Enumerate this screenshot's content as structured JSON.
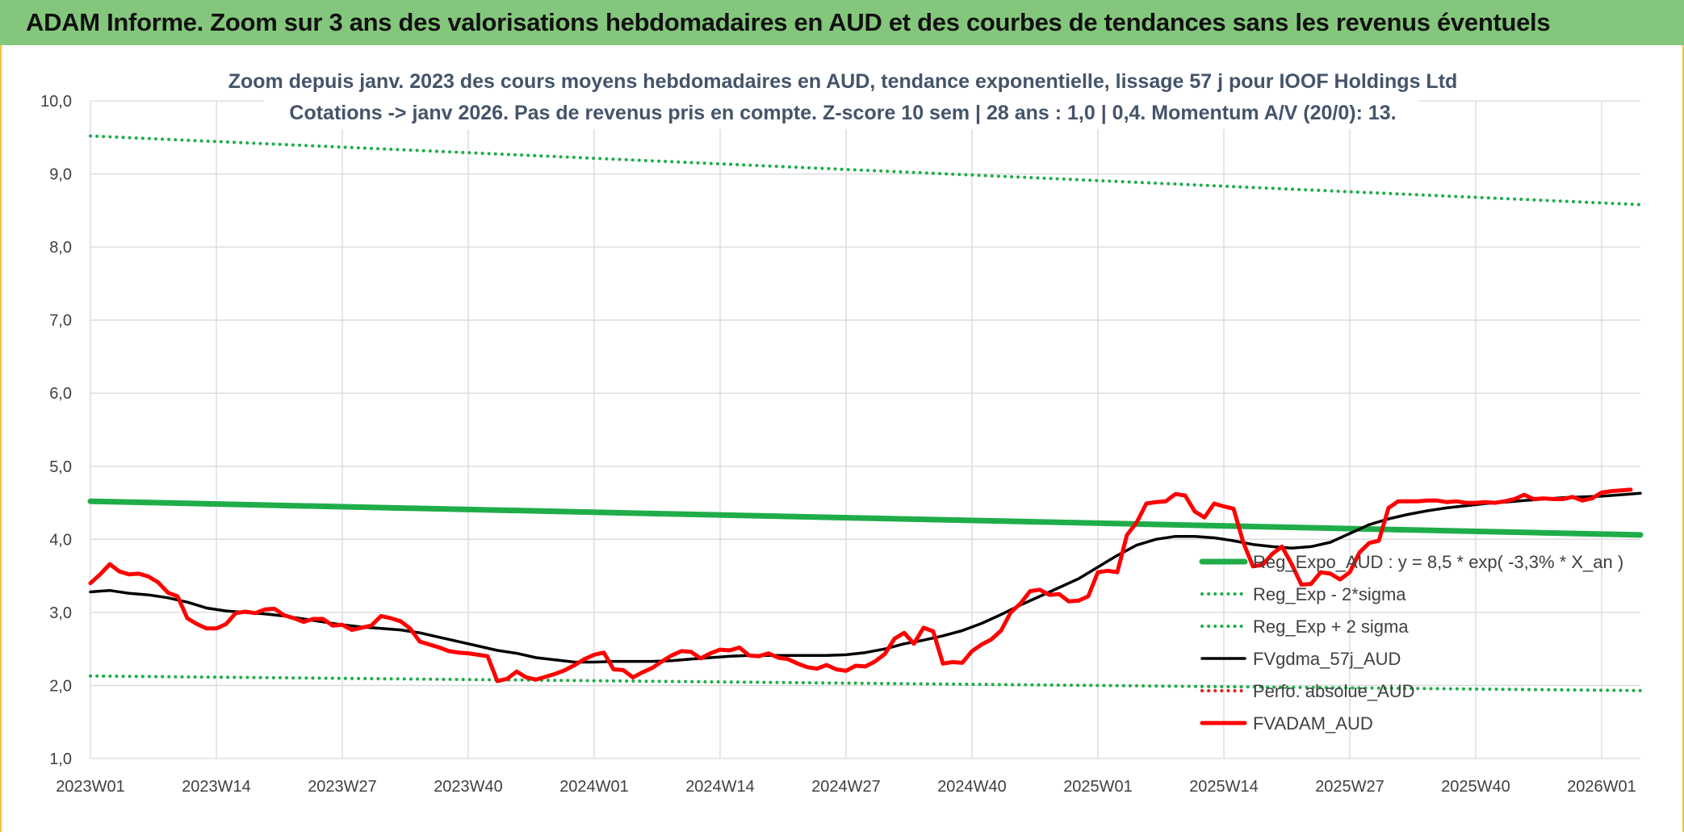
{
  "header": {
    "title": "ADAM Informe. Zoom sur 3 ans des valorisations hebdomadaires en AUD et des courbes de tendances sans les revenus éventuels"
  },
  "chart_data": {
    "type": "line",
    "title_line1": "Zoom depuis janv. 2023 des cours moyens hebdomadaires en AUD, tendance exponentielle, lissage 57 j pour IOOF Holdings Ltd",
    "title_line2": "Cotations -> janv 2026. Pas de revenus pris en compte. Z-score 10 sem | 28 ans : 1,0 | 0,4. Momentum A/V (20/0): 13.",
    "ylim": [
      1.0,
      10.0
    ],
    "y_ticks": [
      "1,0",
      "2,0",
      "3,0",
      "4,0",
      "5,0",
      "6,0",
      "7,0",
      "8,0",
      "9,0",
      "10,0"
    ],
    "x_range_weeks": [
      0,
      160
    ],
    "x_ticks": [
      {
        "label": "2023W01",
        "week": 0
      },
      {
        "label": "2023W14",
        "week": 13
      },
      {
        "label": "2023W27",
        "week": 26
      },
      {
        "label": "2023W40",
        "week": 39
      },
      {
        "label": "2024W01",
        "week": 52
      },
      {
        "label": "2024W14",
        "week": 65
      },
      {
        "label": "2024W27",
        "week": 78
      },
      {
        "label": "2024W40",
        "week": 91
      },
      {
        "label": "2025W01",
        "week": 104
      },
      {
        "label": "2025W14",
        "week": 117
      },
      {
        "label": "2025W27",
        "week": 130
      },
      {
        "label": "2025W40",
        "week": 143
      },
      {
        "label": "2026W01",
        "week": 156
      }
    ],
    "grid": true,
    "legend_position": "right",
    "series": [
      {
        "name": "Reg_Expo_AUD : y = 8,5 * exp( -3,3% *  X_an )",
        "color": "#1fad4a",
        "style": "solid-thick",
        "points": [
          [
            0,
            4.52
          ],
          [
            160,
            4.06
          ]
        ]
      },
      {
        "name": "Reg_Exp - 2*sigma",
        "color": "#1fad4a",
        "style": "dotted",
        "points": [
          [
            0,
            2.13
          ],
          [
            160,
            1.93
          ]
        ]
      },
      {
        "name": "Reg_Exp + 2 sigma",
        "color": "#1fad4a",
        "style": "dotted",
        "points": [
          [
            0,
            9.52
          ],
          [
            160,
            8.58
          ]
        ]
      },
      {
        "name": "FVgdma_57j_AUD",
        "color": "#000000",
        "style": "solid",
        "points": [
          [
            0,
            3.28
          ],
          [
            2,
            3.3
          ],
          [
            4,
            3.26
          ],
          [
            6,
            3.24
          ],
          [
            8,
            3.2
          ],
          [
            10,
            3.14
          ],
          [
            12,
            3.06
          ],
          [
            14,
            3.02
          ],
          [
            16,
            3.0
          ],
          [
            18,
            2.98
          ],
          [
            20,
            2.95
          ],
          [
            22,
            2.91
          ],
          [
            24,
            2.87
          ],
          [
            26,
            2.83
          ],
          [
            28,
            2.8
          ],
          [
            30,
            2.78
          ],
          [
            32,
            2.76
          ],
          [
            34,
            2.72
          ],
          [
            36,
            2.66
          ],
          [
            38,
            2.6
          ],
          [
            40,
            2.54
          ],
          [
            42,
            2.48
          ],
          [
            44,
            2.44
          ],
          [
            46,
            2.38
          ],
          [
            48,
            2.35
          ],
          [
            50,
            2.32
          ],
          [
            52,
            2.32
          ],
          [
            54,
            2.33
          ],
          [
            56,
            2.33
          ],
          [
            58,
            2.33
          ],
          [
            60,
            2.34
          ],
          [
            62,
            2.36
          ],
          [
            64,
            2.38
          ],
          [
            66,
            2.4
          ],
          [
            68,
            2.41
          ],
          [
            70,
            2.41
          ],
          [
            72,
            2.41
          ],
          [
            74,
            2.41
          ],
          [
            76,
            2.41
          ],
          [
            78,
            2.42
          ],
          [
            80,
            2.45
          ],
          [
            82,
            2.5
          ],
          [
            84,
            2.57
          ],
          [
            86,
            2.62
          ],
          [
            88,
            2.68
          ],
          [
            90,
            2.75
          ],
          [
            92,
            2.85
          ],
          [
            94,
            2.97
          ],
          [
            96,
            3.1
          ],
          [
            98,
            3.22
          ],
          [
            100,
            3.34
          ],
          [
            102,
            3.46
          ],
          [
            104,
            3.62
          ],
          [
            106,
            3.78
          ],
          [
            108,
            3.92
          ],
          [
            110,
            4.0
          ],
          [
            112,
            4.04
          ],
          [
            114,
            4.04
          ],
          [
            116,
            4.02
          ],
          [
            118,
            3.98
          ],
          [
            120,
            3.93
          ],
          [
            122,
            3.9
          ],
          [
            124,
            3.88
          ],
          [
            126,
            3.9
          ],
          [
            128,
            3.96
          ],
          [
            130,
            4.08
          ],
          [
            132,
            4.2
          ],
          [
            134,
            4.28
          ],
          [
            136,
            4.34
          ],
          [
            138,
            4.39
          ],
          [
            140,
            4.43
          ],
          [
            142,
            4.46
          ],
          [
            144,
            4.49
          ],
          [
            146,
            4.51
          ],
          [
            148,
            4.53
          ],
          [
            150,
            4.55
          ],
          [
            152,
            4.57
          ],
          [
            154,
            4.58
          ],
          [
            156,
            4.59
          ],
          [
            158,
            4.61
          ],
          [
            160,
            4.63
          ]
        ]
      },
      {
        "name": "Perfo. absolue_AUD",
        "color": "#e02020",
        "style": "dotted",
        "points": []
      },
      {
        "name": "FVADAM_AUD",
        "color": "#ff0000",
        "style": "solid-thick",
        "points": [
          [
            0,
            3.4
          ],
          [
            1,
            3.52
          ],
          [
            2,
            3.66
          ],
          [
            3,
            3.56
          ],
          [
            4,
            3.52
          ],
          [
            5,
            3.53
          ],
          [
            6,
            3.49
          ],
          [
            7,
            3.41
          ],
          [
            8,
            3.27
          ],
          [
            9,
            3.22
          ],
          [
            10,
            2.92
          ],
          [
            11,
            2.84
          ],
          [
            12,
            2.78
          ],
          [
            13,
            2.78
          ],
          [
            14,
            2.84
          ],
          [
            15,
            2.99
          ],
          [
            16,
            3.01
          ],
          [
            17,
            2.99
          ],
          [
            18,
            3.04
          ],
          [
            19,
            3.05
          ],
          [
            20,
            2.96
          ],
          [
            21,
            2.92
          ],
          [
            22,
            2.87
          ],
          [
            23,
            2.91
          ],
          [
            24,
            2.91
          ],
          [
            25,
            2.82
          ],
          [
            26,
            2.83
          ],
          [
            27,
            2.76
          ],
          [
            28,
            2.79
          ],
          [
            29,
            2.82
          ],
          [
            30,
            2.95
          ],
          [
            31,
            2.92
          ],
          [
            32,
            2.88
          ],
          [
            33,
            2.78
          ],
          [
            34,
            2.6
          ],
          [
            35,
            2.56
          ],
          [
            36,
            2.52
          ],
          [
            37,
            2.47
          ],
          [
            38,
            2.45
          ],
          [
            39,
            2.44
          ],
          [
            40,
            2.42
          ],
          [
            41,
            2.4
          ],
          [
            42,
            2.06
          ],
          [
            43,
            2.09
          ],
          [
            44,
            2.19
          ],
          [
            45,
            2.11
          ],
          [
            46,
            2.08
          ],
          [
            47,
            2.12
          ],
          [
            48,
            2.16
          ],
          [
            49,
            2.21
          ],
          [
            50,
            2.28
          ],
          [
            51,
            2.36
          ],
          [
            52,
            2.42
          ],
          [
            53,
            2.45
          ],
          [
            54,
            2.22
          ],
          [
            55,
            2.21
          ],
          [
            56,
            2.11
          ],
          [
            57,
            2.18
          ],
          [
            58,
            2.24
          ],
          [
            59,
            2.33
          ],
          [
            60,
            2.41
          ],
          [
            61,
            2.47
          ],
          [
            62,
            2.46
          ],
          [
            63,
            2.37
          ],
          [
            64,
            2.44
          ],
          [
            65,
            2.49
          ],
          [
            66,
            2.48
          ],
          [
            67,
            2.52
          ],
          [
            68,
            2.41
          ],
          [
            69,
            2.4
          ],
          [
            70,
            2.44
          ],
          [
            71,
            2.38
          ],
          [
            72,
            2.36
          ],
          [
            73,
            2.3
          ],
          [
            74,
            2.25
          ],
          [
            75,
            2.23
          ],
          [
            76,
            2.28
          ],
          [
            77,
            2.22
          ],
          [
            78,
            2.2
          ],
          [
            79,
            2.27
          ],
          [
            80,
            2.26
          ],
          [
            81,
            2.33
          ],
          [
            82,
            2.43
          ],
          [
            83,
            2.64
          ],
          [
            84,
            2.72
          ],
          [
            85,
            2.57
          ],
          [
            86,
            2.79
          ],
          [
            87,
            2.74
          ],
          [
            88,
            2.3
          ],
          [
            89,
            2.32
          ],
          [
            90,
            2.31
          ],
          [
            91,
            2.47
          ],
          [
            92,
            2.56
          ],
          [
            93,
            2.63
          ],
          [
            94,
            2.75
          ],
          [
            95,
            3.0
          ],
          [
            96,
            3.12
          ],
          [
            97,
            3.29
          ],
          [
            98,
            3.31
          ],
          [
            99,
            3.24
          ],
          [
            100,
            3.25
          ],
          [
            101,
            3.15
          ],
          [
            102,
            3.16
          ],
          [
            103,
            3.22
          ],
          [
            104,
            3.55
          ],
          [
            105,
            3.57
          ],
          [
            106,
            3.55
          ],
          [
            107,
            4.06
          ],
          [
            108,
            4.23
          ],
          [
            109,
            4.49
          ],
          [
            110,
            4.51
          ],
          [
            111,
            4.52
          ],
          [
            112,
            4.62
          ],
          [
            113,
            4.6
          ],
          [
            114,
            4.38
          ],
          [
            115,
            4.3
          ],
          [
            116,
            4.49
          ],
          [
            117,
            4.45
          ],
          [
            118,
            4.42
          ],
          [
            119,
            3.96
          ],
          [
            120,
            3.63
          ],
          [
            121,
            3.65
          ],
          [
            122,
            3.8
          ],
          [
            123,
            3.9
          ],
          [
            124,
            3.66
          ],
          [
            125,
            3.38
          ],
          [
            126,
            3.39
          ],
          [
            127,
            3.55
          ],
          [
            128,
            3.53
          ],
          [
            129,
            3.45
          ],
          [
            130,
            3.55
          ],
          [
            131,
            3.82
          ],
          [
            132,
            3.95
          ],
          [
            133,
            3.98
          ],
          [
            134,
            4.43
          ],
          [
            135,
            4.52
          ],
          [
            136,
            4.52
          ],
          [
            137,
            4.52
          ],
          [
            138,
            4.53
          ],
          [
            139,
            4.53
          ],
          [
            140,
            4.51
          ],
          [
            141,
            4.52
          ],
          [
            142,
            4.5
          ],
          [
            143,
            4.5
          ],
          [
            144,
            4.51
          ],
          [
            145,
            4.5
          ],
          [
            146,
            4.52
          ],
          [
            147,
            4.55
          ],
          [
            148,
            4.61
          ],
          [
            149,
            4.55
          ],
          [
            150,
            4.56
          ],
          [
            151,
            4.55
          ],
          [
            152,
            4.55
          ],
          [
            153,
            4.58
          ],
          [
            154,
            4.53
          ],
          [
            155,
            4.56
          ],
          [
            156,
            4.64
          ],
          [
            157,
            4.66
          ],
          [
            158,
            4.67
          ],
          [
            159,
            4.68
          ]
        ]
      }
    ]
  }
}
